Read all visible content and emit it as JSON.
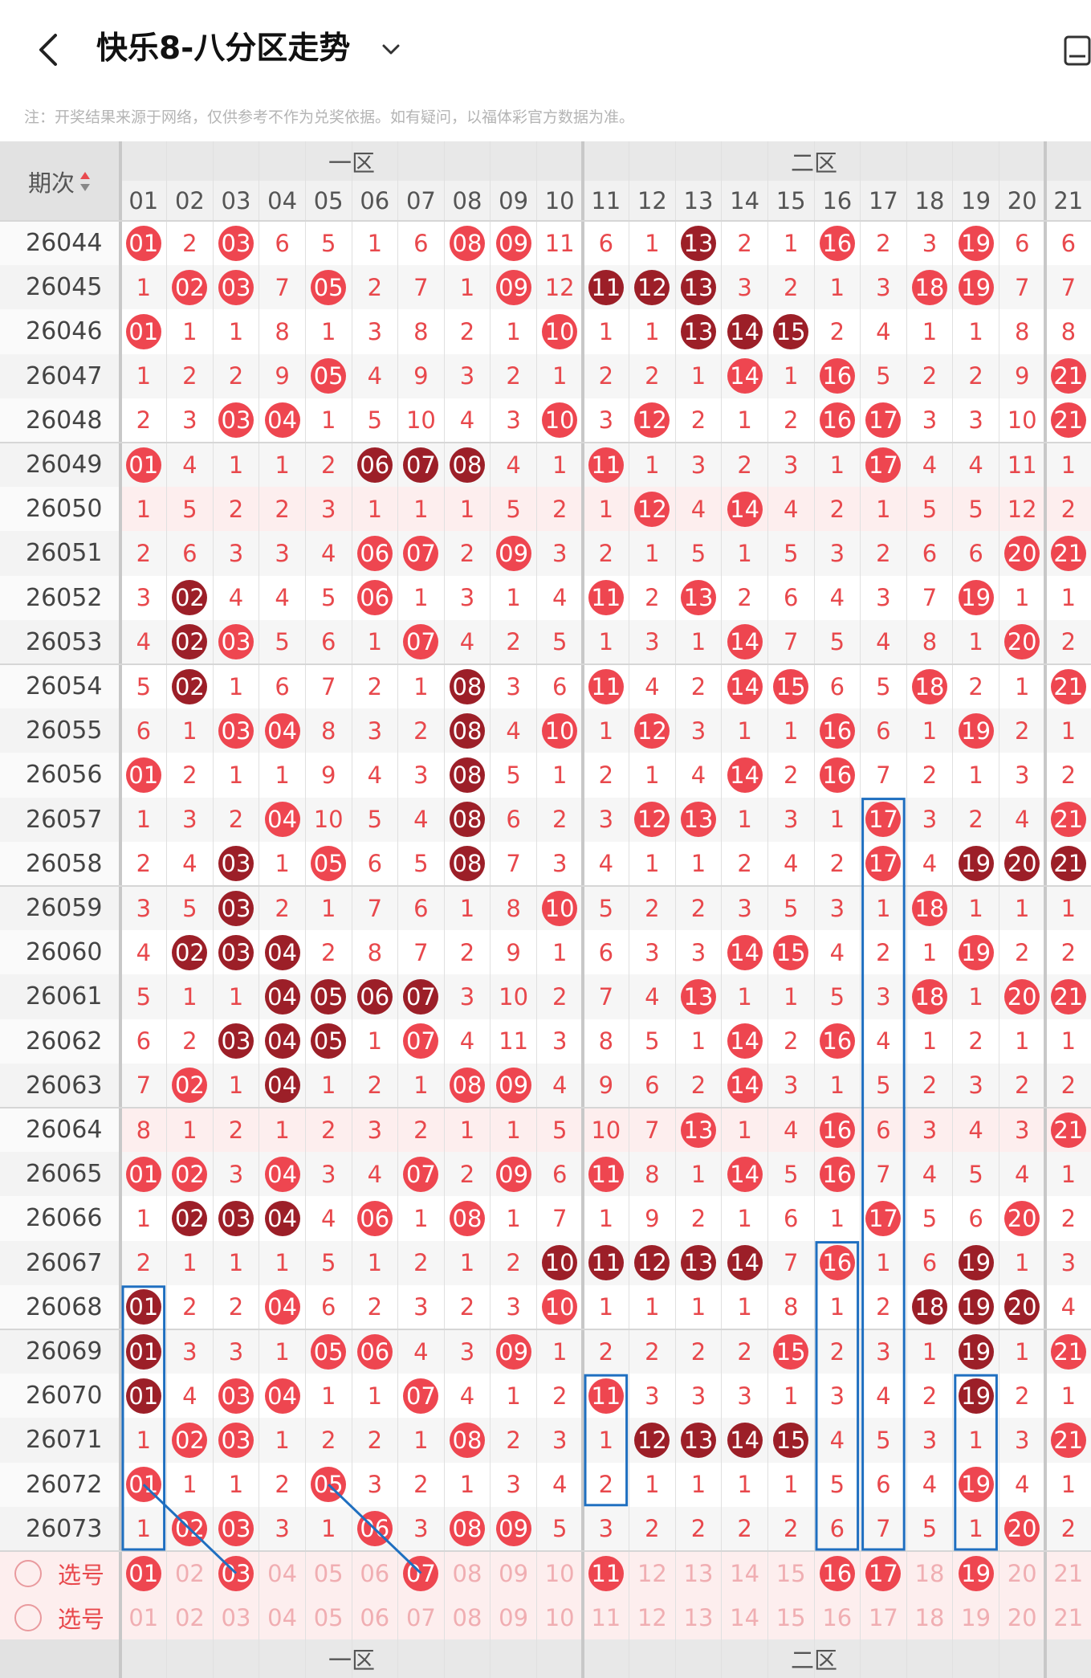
{
  "header": {
    "title": "快乐8-八分区走势"
  },
  "notice": "注：开奖结果来源于网络，仅供参考不作为兑奖依据。如有疑问，以福体彩官方数据为准。",
  "table": {
    "period_label": "期次",
    "zones": [
      "一区",
      "二区"
    ],
    "columns": [
      "01",
      "02",
      "03",
      "04",
      "05",
      "06",
      "07",
      "08",
      "09",
      "10",
      "11",
      "12",
      "13",
      "14",
      "15",
      "16",
      "17",
      "18",
      "19",
      "20",
      "21"
    ],
    "rows": [
      {
        "period": "26044",
        "cells": [
          "01",
          "2",
          "03",
          "6",
          "5",
          "1",
          "6",
          "08",
          "09",
          "11",
          "6",
          "1",
          "13",
          "2",
          "1",
          "16",
          "2",
          "3",
          "19",
          "6",
          "6"
        ],
        "dark": [
          13
        ]
      },
      {
        "period": "26045",
        "cells": [
          "1",
          "02",
          "03",
          "7",
          "05",
          "2",
          "7",
          "1",
          "09",
          "12",
          "11",
          "12",
          "13",
          "3",
          "2",
          "1",
          "3",
          "18",
          "19",
          "7",
          "7"
        ],
        "dark": [
          11,
          12,
          13
        ]
      },
      {
        "period": "26046",
        "cells": [
          "01",
          "1",
          "1",
          "8",
          "1",
          "3",
          "8",
          "2",
          "1",
          "10",
          "1",
          "1",
          "13",
          "14",
          "15",
          "2",
          "4",
          "1",
          "1",
          "8",
          "8"
        ],
        "dark": [
          13,
          14,
          15
        ]
      },
      {
        "period": "26047",
        "cells": [
          "1",
          "2",
          "2",
          "9",
          "05",
          "4",
          "9",
          "3",
          "2",
          "1",
          "2",
          "2",
          "1",
          "14",
          "1",
          "16",
          "5",
          "2",
          "2",
          "9",
          "21"
        ],
        "dark": []
      },
      {
        "period": "26048",
        "cells": [
          "2",
          "3",
          "03",
          "04",
          "1",
          "5",
          "10",
          "4",
          "3",
          "10",
          "3",
          "12",
          "2",
          "1",
          "2",
          "16",
          "17",
          "3",
          "3",
          "10",
          "21"
        ],
        "dark": []
      },
      {
        "period": "26049",
        "cells": [
          "01",
          "4",
          "1",
          "1",
          "2",
          "06",
          "07",
          "08",
          "4",
          "1",
          "11",
          "1",
          "3",
          "2",
          "3",
          "1",
          "17",
          "4",
          "4",
          "11",
          "1"
        ],
        "dark": [
          6,
          7,
          8
        ]
      },
      {
        "period": "26050",
        "cells": [
          "1",
          "5",
          "2",
          "2",
          "3",
          "1",
          "1",
          "1",
          "5",
          "2",
          "1",
          "12",
          "4",
          "14",
          "4",
          "2",
          "1",
          "5",
          "5",
          "12",
          "2"
        ],
        "dark": [],
        "shade": true
      },
      {
        "period": "26051",
        "cells": [
          "2",
          "6",
          "3",
          "3",
          "4",
          "06",
          "07",
          "2",
          "09",
          "3",
          "2",
          "1",
          "5",
          "1",
          "5",
          "3",
          "2",
          "6",
          "6",
          "20",
          "21"
        ],
        "dark": []
      },
      {
        "period": "26052",
        "cells": [
          "3",
          "02",
          "4",
          "4",
          "5",
          "06",
          "1",
          "3",
          "1",
          "4",
          "11",
          "2",
          "13",
          "2",
          "6",
          "4",
          "3",
          "7",
          "19",
          "1",
          "1"
        ],
        "dark": [
          2
        ]
      },
      {
        "period": "26053",
        "cells": [
          "4",
          "02",
          "03",
          "5",
          "6",
          "1",
          "07",
          "4",
          "2",
          "5",
          "1",
          "3",
          "1",
          "14",
          "7",
          "5",
          "4",
          "8",
          "1",
          "20",
          "2"
        ],
        "dark": [
          2
        ]
      },
      {
        "period": "26054",
        "cells": [
          "5",
          "02",
          "1",
          "6",
          "7",
          "2",
          "1",
          "08",
          "3",
          "6",
          "11",
          "4",
          "2",
          "14",
          "15",
          "6",
          "5",
          "18",
          "2",
          "1",
          "21"
        ],
        "dark": [
          2,
          8
        ]
      },
      {
        "period": "26055",
        "cells": [
          "6",
          "1",
          "03",
          "04",
          "8",
          "3",
          "2",
          "08",
          "4",
          "10",
          "1",
          "12",
          "3",
          "1",
          "1",
          "16",
          "6",
          "1",
          "19",
          "2",
          "1"
        ],
        "dark": [
          8
        ]
      },
      {
        "period": "26056",
        "cells": [
          "01",
          "2",
          "1",
          "1",
          "9",
          "4",
          "3",
          "08",
          "5",
          "1",
          "2",
          "1",
          "4",
          "14",
          "2",
          "16",
          "7",
          "2",
          "1",
          "3",
          "2"
        ],
        "dark": [
          8
        ]
      },
      {
        "period": "26057",
        "cells": [
          "1",
          "3",
          "2",
          "04",
          "10",
          "5",
          "4",
          "08",
          "6",
          "2",
          "3",
          "12",
          "13",
          "1",
          "3",
          "1",
          "17",
          "3",
          "2",
          "4",
          "21"
        ],
        "dark": [
          8
        ]
      },
      {
        "period": "26058",
        "cells": [
          "2",
          "4",
          "03",
          "1",
          "05",
          "6",
          "5",
          "08",
          "7",
          "3",
          "4",
          "1",
          "1",
          "2",
          "4",
          "2",
          "17",
          "4",
          "19",
          "20",
          "21"
        ],
        "dark": [
          3,
          8,
          19,
          20,
          21
        ]
      },
      {
        "period": "26059",
        "cells": [
          "3",
          "5",
          "03",
          "2",
          "1",
          "7",
          "6",
          "1",
          "8",
          "10",
          "5",
          "2",
          "2",
          "3",
          "5",
          "3",
          "1",
          "18",
          "1",
          "1",
          "1"
        ],
        "dark": [
          3
        ]
      },
      {
        "period": "26060",
        "cells": [
          "4",
          "02",
          "03",
          "04",
          "2",
          "8",
          "7",
          "2",
          "9",
          "1",
          "6",
          "3",
          "3",
          "14",
          "15",
          "4",
          "2",
          "1",
          "19",
          "2",
          "2"
        ],
        "dark": [
          2,
          3,
          4
        ]
      },
      {
        "period": "26061",
        "cells": [
          "5",
          "1",
          "1",
          "04",
          "05",
          "06",
          "07",
          "3",
          "10",
          "2",
          "7",
          "4",
          "13",
          "1",
          "1",
          "5",
          "3",
          "18",
          "1",
          "20",
          "21"
        ],
        "dark": [
          4,
          5,
          6,
          7
        ]
      },
      {
        "period": "26062",
        "cells": [
          "6",
          "2",
          "03",
          "04",
          "05",
          "1",
          "07",
          "4",
          "11",
          "3",
          "8",
          "5",
          "1",
          "14",
          "2",
          "16",
          "4",
          "1",
          "2",
          "1",
          "1"
        ],
        "dark": [
          3,
          4,
          5
        ]
      },
      {
        "period": "26063",
        "cells": [
          "7",
          "02",
          "1",
          "04",
          "1",
          "2",
          "1",
          "08",
          "09",
          "4",
          "9",
          "6",
          "2",
          "14",
          "3",
          "1",
          "5",
          "2",
          "3",
          "2",
          "2"
        ],
        "dark": [
          4
        ]
      },
      {
        "period": "26064",
        "cells": [
          "8",
          "1",
          "2",
          "1",
          "2",
          "3",
          "2",
          "1",
          "1",
          "5",
          "10",
          "7",
          "13",
          "1",
          "4",
          "16",
          "6",
          "3",
          "4",
          "3",
          "21"
        ],
        "dark": [],
        "shade": true
      },
      {
        "period": "26065",
        "cells": [
          "01",
          "02",
          "3",
          "04",
          "3",
          "4",
          "07",
          "2",
          "09",
          "6",
          "11",
          "8",
          "1",
          "14",
          "5",
          "16",
          "7",
          "4",
          "5",
          "4",
          "1"
        ],
        "dark": []
      },
      {
        "period": "26066",
        "cells": [
          "1",
          "02",
          "03",
          "04",
          "4",
          "06",
          "1",
          "08",
          "1",
          "7",
          "1",
          "9",
          "2",
          "1",
          "6",
          "1",
          "17",
          "5",
          "6",
          "20",
          "2"
        ],
        "dark": [
          2,
          3,
          4
        ]
      },
      {
        "period": "26067",
        "cells": [
          "2",
          "1",
          "1",
          "1",
          "5",
          "1",
          "2",
          "1",
          "2",
          "10",
          "11",
          "12",
          "13",
          "14",
          "7",
          "16",
          "1",
          "6",
          "19",
          "1",
          "3"
        ],
        "dark": [
          10,
          11,
          12,
          13,
          14,
          19
        ]
      },
      {
        "period": "26068",
        "cells": [
          "01",
          "2",
          "2",
          "04",
          "6",
          "2",
          "3",
          "2",
          "3",
          "10",
          "1",
          "1",
          "1",
          "1",
          "8",
          "1",
          "2",
          "18",
          "19",
          "20",
          "4"
        ],
        "dark": [
          1,
          18,
          19,
          20
        ]
      },
      {
        "period": "26069",
        "cells": [
          "01",
          "3",
          "3",
          "1",
          "05",
          "06",
          "4",
          "3",
          "09",
          "1",
          "2",
          "2",
          "2",
          "2",
          "15",
          "2",
          "3",
          "1",
          "19",
          "1",
          "21"
        ],
        "dark": [
          1,
          19
        ]
      },
      {
        "period": "26070",
        "cells": [
          "01",
          "4",
          "03",
          "04",
          "1",
          "1",
          "07",
          "4",
          "1",
          "2",
          "11",
          "3",
          "3",
          "3",
          "1",
          "3",
          "4",
          "2",
          "19",
          "2",
          "1"
        ],
        "dark": [
          1,
          19
        ]
      },
      {
        "period": "26071",
        "cells": [
          "1",
          "02",
          "03",
          "1",
          "2",
          "2",
          "1",
          "08",
          "2",
          "3",
          "1",
          "12",
          "13",
          "14",
          "15",
          "4",
          "5",
          "3",
          "1",
          "3",
          "21"
        ],
        "dark": [
          12,
          13,
          14,
          15
        ]
      },
      {
        "period": "26072",
        "cells": [
          "01",
          "1",
          "1",
          "2",
          "05",
          "3",
          "2",
          "1",
          "3",
          "4",
          "2",
          "1",
          "1",
          "1",
          "1",
          "5",
          "6",
          "4",
          "19",
          "4",
          "1"
        ],
        "dark": []
      },
      {
        "period": "26073",
        "cells": [
          "1",
          "02",
          "03",
          "3",
          "1",
          "06",
          "3",
          "08",
          "09",
          "5",
          "3",
          "2",
          "2",
          "2",
          "2",
          "6",
          "7",
          "5",
          "1",
          "20",
          "2"
        ],
        "dark": []
      }
    ],
    "pick_rows": [
      {
        "label": "选号",
        "selected": [
          "01",
          "03",
          "07",
          "11",
          "16",
          "17",
          "19"
        ]
      },
      {
        "label": "选号",
        "selected": []
      }
    ]
  }
}
